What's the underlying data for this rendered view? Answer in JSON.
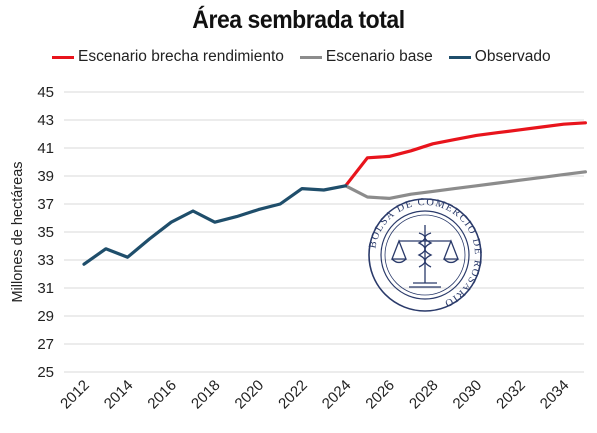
{
  "chart_data": {
    "type": "line",
    "title": "Área sembrada total",
    "ylabel": "Millones de hectáreas",
    "xlabel": "",
    "ylim": [
      25,
      45
    ],
    "xlim": [
      2012,
      2035
    ],
    "y_ticks": [
      "25",
      "27",
      "29",
      "31",
      "33",
      "35",
      "37",
      "39",
      "41",
      "43",
      "45"
    ],
    "x_ticks": [
      "2012",
      "2014",
      "2016",
      "2018",
      "2020",
      "2022",
      "2024",
      "2026",
      "2028",
      "2030",
      "2032",
      "2034"
    ],
    "grid": "horizontal",
    "legend_position": "top",
    "series": [
      {
        "name": "Escenario brecha rendimiento",
        "color": "#e8141c",
        "x": [
          2024,
          2025,
          2026,
          2027,
          2028,
          2029,
          2030,
          2031,
          2032,
          2033,
          2034,
          2035
        ],
        "values": [
          38.3,
          40.3,
          40.4,
          40.8,
          41.3,
          41.6,
          41.9,
          42.1,
          42.3,
          42.5,
          42.7,
          42.8
        ]
      },
      {
        "name": "Escenario base",
        "color": "#8c8c8c",
        "x": [
          2024,
          2025,
          2026,
          2027,
          2028,
          2029,
          2030,
          2031,
          2032,
          2033,
          2034,
          2035
        ],
        "values": [
          38.3,
          37.5,
          37.4,
          37.7,
          37.9,
          38.1,
          38.3,
          38.5,
          38.7,
          38.9,
          39.1,
          39.3
        ]
      },
      {
        "name": "Observado",
        "color": "#1f4e6b",
        "x": [
          2012,
          2013,
          2014,
          2015,
          2016,
          2017,
          2018,
          2019,
          2020,
          2021,
          2022,
          2023,
          2024
        ],
        "values": [
          32.7,
          33.8,
          33.2,
          34.5,
          35.7,
          36.5,
          35.7,
          36.1,
          36.6,
          37.0,
          38.1,
          38.0,
          38.3
        ]
      }
    ]
  },
  "watermark": {
    "text": "BOLSA DE COMERCIO DE ROSARIO",
    "color": "#2a3a6a"
  }
}
